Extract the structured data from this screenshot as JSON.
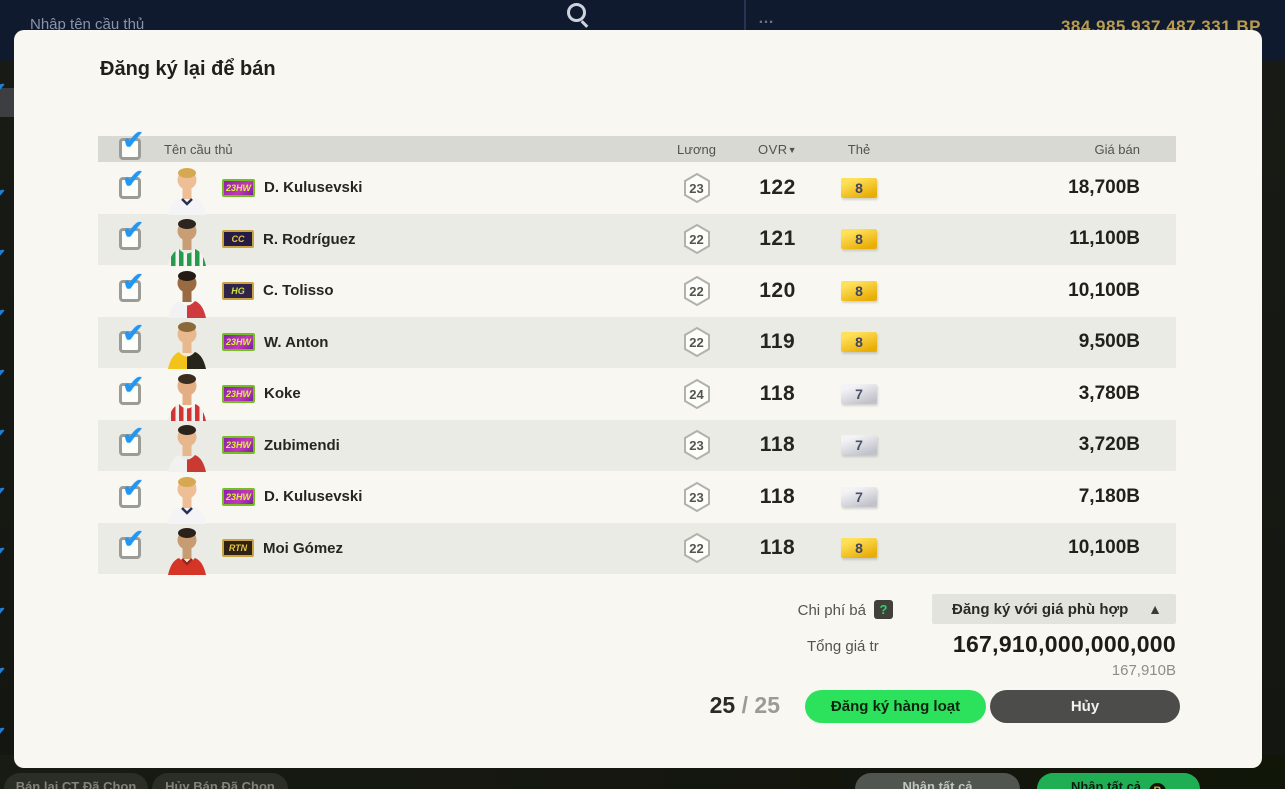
{
  "topbar": {
    "search_placeholder": "Nhập tên cầu thủ",
    "more_fragment": "…",
    "bp_amount": "384,985,937,487,331 BP"
  },
  "modal": {
    "title": "Đăng ký lại để bán",
    "table": {
      "headers": {
        "name": "Tên cầu thủ",
        "salary": "Lương",
        "ovr": "OVR",
        "sort_icon": "▼",
        "card": "Thẻ",
        "price": "Giá bán"
      },
      "rows": [
        {
          "name": "D. Kulusevski",
          "badge": "23HW",
          "badge_style": "hw",
          "salary": "23",
          "ovr": "122",
          "card": "8",
          "card_tier": "gold",
          "price": "18,700B",
          "avatar": {
            "skin": "#eebf97",
            "hair": "#d6a852",
            "shirt": "#f4f4f7",
            "shirt2": "#273057",
            "pattern": "plain"
          }
        },
        {
          "name": "R. Rodríguez",
          "badge": "CC",
          "badge_style": "cc",
          "salary": "22",
          "ovr": "121",
          "card": "8",
          "card_tier": "gold",
          "price": "11,100B",
          "avatar": {
            "skin": "#c99e74",
            "hair": "#2c241d",
            "shirt": "#f2f4ef",
            "shirt2": "#279a4b",
            "pattern": "stripes"
          }
        },
        {
          "name": "C. Tolisso",
          "badge": "HG",
          "badge_style": "hg",
          "salary": "22",
          "ovr": "120",
          "card": "8",
          "card_tier": "gold",
          "price": "10,100B",
          "avatar": {
            "skin": "#9a6a42",
            "hair": "#241c14",
            "shirt": "#f2f2f4",
            "shirt2": "#cf3a3f",
            "pattern": "halves"
          }
        },
        {
          "name": "W. Anton",
          "badge": "23HW",
          "badge_style": "hw",
          "salary": "22",
          "ovr": "119",
          "card": "8",
          "card_tier": "gold",
          "price": "9,500B",
          "avatar": {
            "skin": "#e8b88f",
            "hair": "#8a6a3a",
            "shirt": "#f3c31c",
            "shirt2": "#27241d",
            "pattern": "halves"
          }
        },
        {
          "name": "Koke",
          "badge": "23HW",
          "badge_style": "hw",
          "salary": "24",
          "ovr": "118",
          "card": "7",
          "card_tier": "silver",
          "price": "3,780B",
          "avatar": {
            "skin": "#e3ae83",
            "hair": "#3a2d20",
            "shirt": "#efefec",
            "shirt2": "#d23434",
            "pattern": "stripes"
          }
        },
        {
          "name": "Zubimendi",
          "badge": "23HW",
          "badge_style": "hw",
          "salary": "23",
          "ovr": "118",
          "card": "7",
          "card_tier": "silver",
          "price": "3,720B",
          "avatar": {
            "skin": "#e6b68c",
            "hair": "#2c231a",
            "shirt": "#f1f1f0",
            "shirt2": "#c93a33",
            "pattern": "halves"
          }
        },
        {
          "name": "D. Kulusevski",
          "badge": "23HW",
          "badge_style": "hw",
          "salary": "23",
          "ovr": "118",
          "card": "7",
          "card_tier": "silver",
          "price": "7,180B",
          "avatar": {
            "skin": "#eebf97",
            "hair": "#d6a852",
            "shirt": "#f4f4f7",
            "shirt2": "#273057",
            "pattern": "plain"
          }
        },
        {
          "name": "Moi Gómez",
          "badge": "RTN",
          "badge_style": "rtn",
          "salary": "22",
          "ovr": "118",
          "card": "8",
          "card_tier": "gold",
          "price": "10,100B",
          "avatar": {
            "skin": "#c79c72",
            "hair": "#2a211a",
            "shirt": "#d53527",
            "shirt2": "#9e241a",
            "pattern": "plain"
          }
        }
      ]
    },
    "summary": {
      "fee_label": "Chi phí bá",
      "help_icon": "?",
      "dropdown_label": "Đăng ký với giá phù hợp",
      "dropdown_arrow": "▲",
      "total_label": "Tổng giá tr",
      "total_value": "167,910,000,000,000",
      "total_sub": "167,910B",
      "count_current": "25",
      "count_divider": " / ",
      "count_total": "25",
      "submit_label": "Đăng ký hàng loạt",
      "cancel_label": "Hủy"
    }
  },
  "bottombar": {
    "buttons": [
      {
        "label": "Bán lại CT Đã Chọn",
        "style": "dark"
      },
      {
        "label": "Hủy Bán Đã Chọn",
        "style": "dark"
      },
      {
        "label": "Nhận tất cả",
        "style": "gray"
      },
      {
        "label": "Nhận tất cả",
        "style": "green",
        "icon": "B"
      }
    ]
  },
  "icons": {
    "check": "✔"
  },
  "colors": {
    "accent_green": "#2ce25c",
    "checkbox_blue": "#2196f3",
    "gold_badge": "#e9ae06",
    "silver_badge": "#c2c2cb",
    "bp_gold": "#b99c4f",
    "modal_bg": "#f8f7f1",
    "row_alt_bg": "#ebebe5"
  }
}
